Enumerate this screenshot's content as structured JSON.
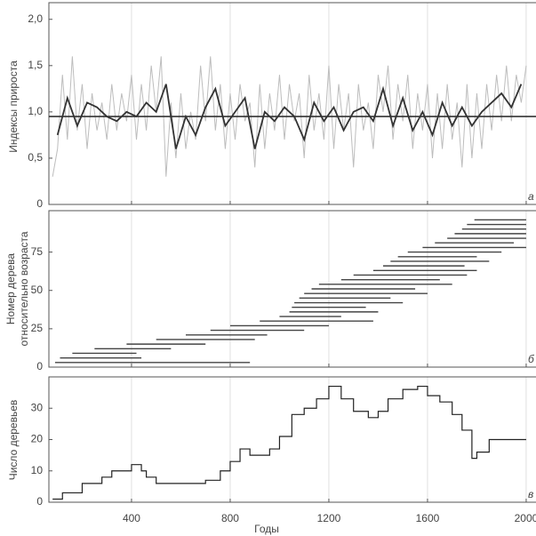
{
  "chart_data": [
    {
      "type": "line",
      "ylabel": "Индексы прироста",
      "panel_label": "а",
      "xlim": [
        65,
        2020
      ],
      "xticks": [
        400,
        800,
        1200,
        1600,
        2000
      ],
      "show_xtick_labels": false,
      "grid": true,
      "ylim": [
        0,
        2.18
      ],
      "yticks": [
        0,
        {
          "value": 0.5,
          "label": "0,5"
        },
        {
          "value": 1.0,
          "label": "1,0"
        },
        {
          "value": 1.5,
          "label": "1,5"
        },
        {
          "value": 2.0,
          "label": "2,0"
        }
      ],
      "reference_line": 0.95,
      "series": [
        {
          "color": "#bdbdbd",
          "x": [
            80,
            100,
            120,
            140,
            160,
            180,
            200,
            220,
            240,
            260,
            280,
            300,
            320,
            340,
            360,
            380,
            400,
            420,
            440,
            460,
            480,
            500,
            520,
            540,
            560,
            580,
            600,
            620,
            640,
            660,
            680,
            700,
            720,
            740,
            760,
            780,
            800,
            820,
            840,
            860,
            880,
            900,
            920,
            940,
            960,
            980,
            1000,
            1020,
            1040,
            1060,
            1080,
            1100,
            1120,
            1140,
            1160,
            1180,
            1200,
            1220,
            1240,
            1260,
            1280,
            1300,
            1320,
            1340,
            1360,
            1380,
            1400,
            1420,
            1440,
            1460,
            1480,
            1500,
            1520,
            1540,
            1560,
            1580,
            1600,
            1620,
            1640,
            1660,
            1680,
            1700,
            1720,
            1740,
            1760,
            1780,
            1800,
            1820,
            1840,
            1860,
            1880,
            1900,
            1920,
            1940,
            1960,
            1980,
            2000
          ],
          "values": [
            0.3,
            0.6,
            1.4,
            0.7,
            1.6,
            0.8,
            1.3,
            0.6,
            1.2,
            0.8,
            1.1,
            0.7,
            1.3,
            0.8,
            1.2,
            0.9,
            1.4,
            0.7,
            1.3,
            0.8,
            1.5,
            1.0,
            1.6,
            0.3,
            1.1,
            0.5,
            1.2,
            0.6,
            1.0,
            0.7,
            1.5,
            0.9,
            1.6,
            0.8,
            1.3,
            0.6,
            1.2,
            0.7,
            1.3,
            0.9,
            1.1,
            0.4,
            1.3,
            0.6,
            1.2,
            0.8,
            1.4,
            0.7,
            1.3,
            0.9,
            1.2,
            0.5,
            1.4,
            0.8,
            1.2,
            0.7,
            1.5,
            0.6,
            1.3,
            0.8,
            1.2,
            0.4,
            1.3,
            0.8,
            1.1,
            0.6,
            1.4,
            1.0,
            1.5,
            0.7,
            1.3,
            0.9,
            1.4,
            0.6,
            1.2,
            0.8,
            1.3,
            0.5,
            1.2,
            0.6,
            1.3,
            0.7,
            1.1,
            0.4,
            1.3,
            0.5,
            1.2,
            0.6,
            1.3,
            0.8,
            1.4,
            0.9,
            1.5,
            0.9,
            1.4,
            1.1,
            1.5
          ]
        },
        {
          "color": "#333333",
          "x": [
            100,
            140,
            180,
            220,
            260,
            300,
            340,
            380,
            420,
            460,
            500,
            540,
            580,
            620,
            660,
            700,
            740,
            780,
            820,
            860,
            900,
            940,
            980,
            1020,
            1060,
            1100,
            1140,
            1180,
            1220,
            1260,
            1300,
            1340,
            1380,
            1420,
            1460,
            1500,
            1540,
            1580,
            1620,
            1660,
            1700,
            1740,
            1780,
            1820,
            1860,
            1900,
            1940,
            1980
          ],
          "values": [
            0.75,
            1.15,
            0.85,
            1.1,
            1.05,
            0.95,
            0.9,
            1.0,
            0.95,
            1.1,
            1.0,
            1.3,
            0.6,
            0.95,
            0.75,
            1.05,
            1.25,
            0.85,
            1.0,
            1.15,
            0.6,
            1.0,
            0.9,
            1.05,
            0.95,
            0.7,
            1.1,
            0.9,
            1.05,
            0.8,
            1.0,
            1.05,
            0.9,
            1.25,
            0.85,
            1.15,
            0.8,
            1.0,
            0.75,
            1.1,
            0.85,
            1.05,
            0.85,
            1.0,
            1.1,
            1.2,
            1.05,
            1.3
          ]
        }
      ]
    },
    {
      "type": "range",
      "ylabel": [
        "Номер дерева",
        "относительно возраста"
      ],
      "panel_label": "б",
      "xlim": [
        65,
        2020
      ],
      "xticks": [
        400,
        800,
        1200,
        1600,
        2000
      ],
      "show_xtick_labels": false,
      "grid": true,
      "ylim": [
        0,
        102
      ],
      "yticks": [
        0,
        25,
        50,
        75
      ],
      "color": "#444444",
      "numbers": [
        3,
        6,
        9,
        12,
        15,
        18,
        21,
        24,
        27,
        30,
        33,
        36,
        39,
        42,
        45,
        48,
        51,
        54,
        57,
        60,
        63,
        66,
        69,
        72,
        75,
        78,
        81,
        84,
        87,
        90,
        93,
        96
      ],
      "starts": [
        90,
        110,
        160,
        250,
        380,
        500,
        620,
        720,
        800,
        920,
        1000,
        1040,
        1050,
        1060,
        1080,
        1100,
        1130,
        1160,
        1250,
        1300,
        1380,
        1420,
        1450,
        1480,
        1520,
        1580,
        1630,
        1680,
        1710,
        1740,
        1760,
        1790
      ],
      "ends": [
        880,
        440,
        420,
        560,
        700,
        900,
        950,
        1100,
        1200,
        1380,
        1250,
        1400,
        1350,
        1500,
        1450,
        1600,
        1550,
        1700,
        1650,
        1760,
        1800,
        1750,
        1850,
        1800,
        1900,
        2000,
        1950,
        2000,
        2000,
        2000,
        2000,
        2000
      ]
    },
    {
      "type": "step",
      "ylabel": "Число деревьев",
      "xlabel": "Годы",
      "panel_label": "в",
      "xlim": [
        65,
        2020
      ],
      "xticks": [
        400,
        800,
        1200,
        1600,
        2000
      ],
      "show_xtick_labels": true,
      "grid": true,
      "ylim": [
        0,
        40
      ],
      "yticks": [
        0,
        10,
        20,
        30
      ],
      "color": "#222222",
      "x": [
        80,
        120,
        200,
        280,
        320,
        400,
        440,
        460,
        500,
        700,
        760,
        800,
        840,
        880,
        960,
        1000,
        1050,
        1100,
        1150,
        1200,
        1250,
        1300,
        1360,
        1400,
        1440,
        1500,
        1560,
        1600,
        1650,
        1700,
        1740,
        1780,
        1800,
        1850,
        1900,
        2000
      ],
      "values": [
        1,
        3,
        6,
        8,
        10,
        12,
        10,
        8,
        6,
        7,
        10,
        13,
        17,
        15,
        17,
        21,
        28,
        30,
        33,
        37,
        33,
        29,
        27,
        29,
        33,
        36,
        37,
        34,
        32,
        28,
        23,
        14,
        16,
        20,
        20,
        20
      ]
    }
  ]
}
